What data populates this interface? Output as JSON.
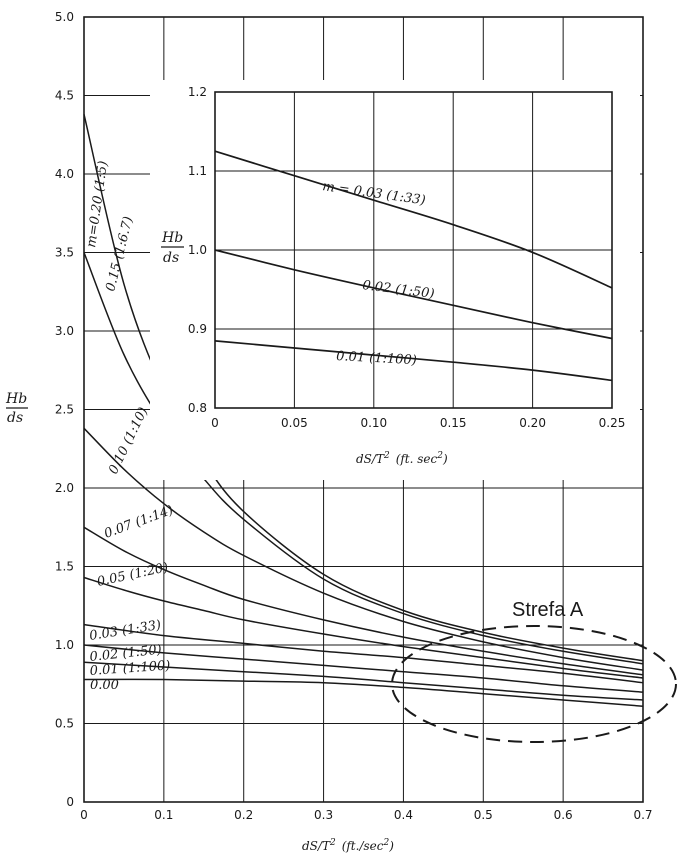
{
  "chart_data": [
    {
      "type": "line",
      "id": "main",
      "xlabel_main": "dS/T",
      "xlabel_exp": "2",
      "xlabel_unit": "(ft./sec",
      "xlabel_unit_exp": "2",
      "xlabel_close": ")",
      "ylabel_num": "Hb",
      "ylabel_den": "ds",
      "xlim": [
        0,
        0.7
      ],
      "ylim": [
        0,
        5.0
      ],
      "xticks": [
        0,
        0.1,
        0.2,
        0.3,
        0.4,
        0.5,
        0.6,
        0.7
      ],
      "xtick_labels": [
        "0",
        "0.1",
        "0.2",
        "0.3",
        "0.4",
        "0.5",
        "0.6",
        "0.7"
      ],
      "yticks": [
        0,
        0.5,
        1.0,
        1.5,
        2.0,
        2.5,
        3.0,
        3.5,
        4.0,
        4.5,
        5.0
      ],
      "ytick_labels": [
        "0",
        "0.5",
        "1.0",
        "1.5",
        "2.0",
        "2.5",
        "3.0",
        "3.5",
        "4.0",
        "4.5",
        "5.0"
      ],
      "grid": true,
      "series": [
        {
          "name": "m=0.20 (1:5)",
          "x": [
            0,
            0.05,
            0.1,
            0.15,
            0.2,
            0.3,
            0.4,
            0.5,
            0.6,
            0.7
          ],
          "y": [
            4.38,
            3.3,
            2.62,
            2.17,
            1.85,
            1.45,
            1.22,
            1.08,
            0.98,
            0.9
          ]
        },
        {
          "name": "m=0.15 (1:6.7)",
          "x": [
            0,
            0.05,
            0.1,
            0.15,
            0.2,
            0.3,
            0.4,
            0.5,
            0.6,
            0.7
          ],
          "y": [
            3.5,
            2.85,
            2.4,
            2.06,
            1.8,
            1.42,
            1.2,
            1.06,
            0.96,
            0.88
          ]
        },
        {
          "name": "m=0.10 (1:10)",
          "x": [
            0,
            0.05,
            0.1,
            0.15,
            0.2,
            0.3,
            0.4,
            0.5,
            0.6,
            0.7
          ],
          "y": [
            2.38,
            2.12,
            1.9,
            1.72,
            1.57,
            1.33,
            1.15,
            1.02,
            0.92,
            0.84
          ]
        },
        {
          "name": "m=0.07 (1:14)",
          "x": [
            0,
            0.05,
            0.1,
            0.15,
            0.2,
            0.3,
            0.4,
            0.5,
            0.6,
            0.7
          ],
          "y": [
            1.75,
            1.6,
            1.48,
            1.38,
            1.29,
            1.16,
            1.05,
            0.96,
            0.88,
            0.81
          ]
        },
        {
          "name": "m=0.05 (1:20)",
          "x": [
            0,
            0.05,
            0.1,
            0.15,
            0.2,
            0.3,
            0.4,
            0.5,
            0.6,
            0.7
          ],
          "y": [
            1.43,
            1.35,
            1.28,
            1.22,
            1.16,
            1.07,
            0.99,
            0.92,
            0.85,
            0.79
          ]
        },
        {
          "name": "m=0.03 (1:33)",
          "x": [
            0,
            0.1,
            0.2,
            0.3,
            0.4,
            0.5,
            0.6,
            0.7
          ],
          "y": [
            1.13,
            1.06,
            1.01,
            0.96,
            0.92,
            0.87,
            0.82,
            0.76
          ]
        },
        {
          "name": "m=0.02 (1:50)",
          "x": [
            0,
            0.1,
            0.2,
            0.3,
            0.4,
            0.5,
            0.6,
            0.7
          ],
          "y": [
            1.0,
            0.95,
            0.91,
            0.87,
            0.83,
            0.79,
            0.74,
            0.7
          ]
        },
        {
          "name": "m=0.01 (1:100)",
          "x": [
            0,
            0.1,
            0.2,
            0.3,
            0.4,
            0.5,
            0.6,
            0.7
          ],
          "y": [
            0.89,
            0.86,
            0.83,
            0.8,
            0.76,
            0.72,
            0.68,
            0.65
          ]
        },
        {
          "name": "m=0.00",
          "x": [
            0,
            0.1,
            0.2,
            0.3,
            0.4,
            0.5,
            0.6,
            0.7
          ],
          "y": [
            0.78,
            0.78,
            0.77,
            0.76,
            0.73,
            0.69,
            0.65,
            0.61
          ]
        }
      ],
      "curve_labels": [
        {
          "text": "m=0.20",
          "slope": "(1:5)"
        },
        {
          "text": "0.15",
          "slope": "(1:6.7)"
        },
        {
          "text": "0.10",
          "slope": "(1:10)"
        },
        {
          "text": "0.07",
          "slope": "(1:14)"
        },
        {
          "text": "0.05",
          "slope": "(1:20)"
        },
        {
          "text": "0.03",
          "slope": "(1:33)"
        },
        {
          "text": "0.02",
          "slope": "(1:50)"
        },
        {
          "text": "0.01",
          "slope": "(1:100)"
        },
        {
          "text": "0.00",
          "slope": ""
        }
      ],
      "zone_label": "Strefa A"
    },
    {
      "type": "line",
      "id": "inset",
      "xlabel_main": "dS/T",
      "xlabel_exp": "2",
      "xlabel_unit": "(ft. sec",
      "xlabel_unit_exp": "2",
      "xlabel_close": ")",
      "ylabel_num": "Hb",
      "ylabel_den": "ds",
      "xlim": [
        0,
        0.25
      ],
      "ylim": [
        0.8,
        1.2
      ],
      "xticks": [
        0,
        0.05,
        0.1,
        0.15,
        0.2,
        0.25
      ],
      "xtick_labels": [
        "0",
        "0.05",
        "0.10",
        "0.15",
        "0.20",
        "0.25"
      ],
      "yticks": [
        0.8,
        0.9,
        1.0,
        1.1,
        1.2
      ],
      "ytick_labels": [
        "0.8",
        "0.9",
        "1.0",
        "1.1",
        "1.2"
      ],
      "grid": true,
      "series": [
        {
          "name": "m=0.03 (1:33)",
          "x": [
            0,
            0.05,
            0.1,
            0.15,
            0.2,
            0.25
          ],
          "y": [
            1.125,
            1.094,
            1.063,
            1.032,
            0.997,
            0.952
          ]
        },
        {
          "name": "0.02 (1:50)",
          "x": [
            0,
            0.05,
            0.1,
            0.15,
            0.2,
            0.25
          ],
          "y": [
            1.0,
            0.975,
            0.952,
            0.93,
            0.908,
            0.888
          ]
        },
        {
          "name": "0.01 (1:100)",
          "x": [
            0,
            0.05,
            0.1,
            0.15,
            0.2,
            0.25
          ],
          "y": [
            0.885,
            0.876,
            0.867,
            0.858,
            0.848,
            0.835
          ]
        }
      ],
      "curve_labels": [
        {
          "text": "m = 0.03 (1:33)"
        },
        {
          "text": "0.02 (1:50)"
        },
        {
          "text": "0.01 (1:100)"
        }
      ]
    }
  ]
}
